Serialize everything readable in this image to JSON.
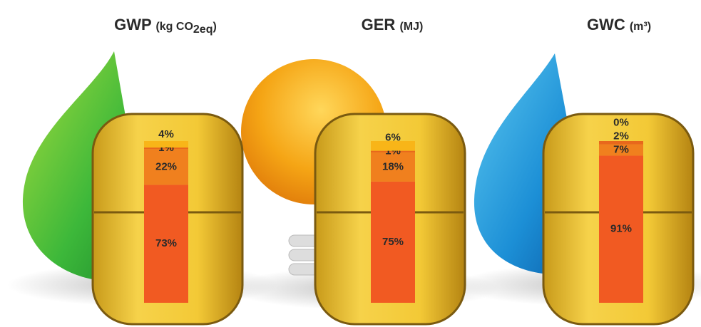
{
  "chart_data": [
    {
      "type": "stacked-bar",
      "title": "GWP",
      "unit": "(kg CO",
      "unit_sub": "2eq",
      "unit_end": ")",
      "values": [
        73,
        22,
        1,
        4
      ],
      "value_labels": [
        "73%",
        "22%",
        "1%",
        "4%"
      ],
      "colors": [
        "#f15a22",
        "#f0801e",
        "#e8681c",
        "#f8b518"
      ],
      "ylim": [
        0,
        100
      ]
    },
    {
      "type": "stacked-bar",
      "title": "GER",
      "unit": "(MJ)",
      "values": [
        75,
        18,
        1,
        6
      ],
      "value_labels": [
        "75%",
        "18%",
        "1%",
        "6%"
      ],
      "colors": [
        "#f15a22",
        "#f0801e",
        "#e8681c",
        "#f8b518"
      ],
      "ylim": [
        0,
        100
      ]
    },
    {
      "type": "stacked-bar",
      "title": "GWC",
      "unit": "(m³)",
      "values": [
        91,
        7,
        2,
        0
      ],
      "value_labels": [
        "91%",
        "7%",
        "2%",
        "0%"
      ],
      "colors": [
        "#f15a22",
        "#f0801e",
        "#e8681c",
        "#f8b518"
      ],
      "ylim": [
        0,
        100
      ]
    }
  ]
}
